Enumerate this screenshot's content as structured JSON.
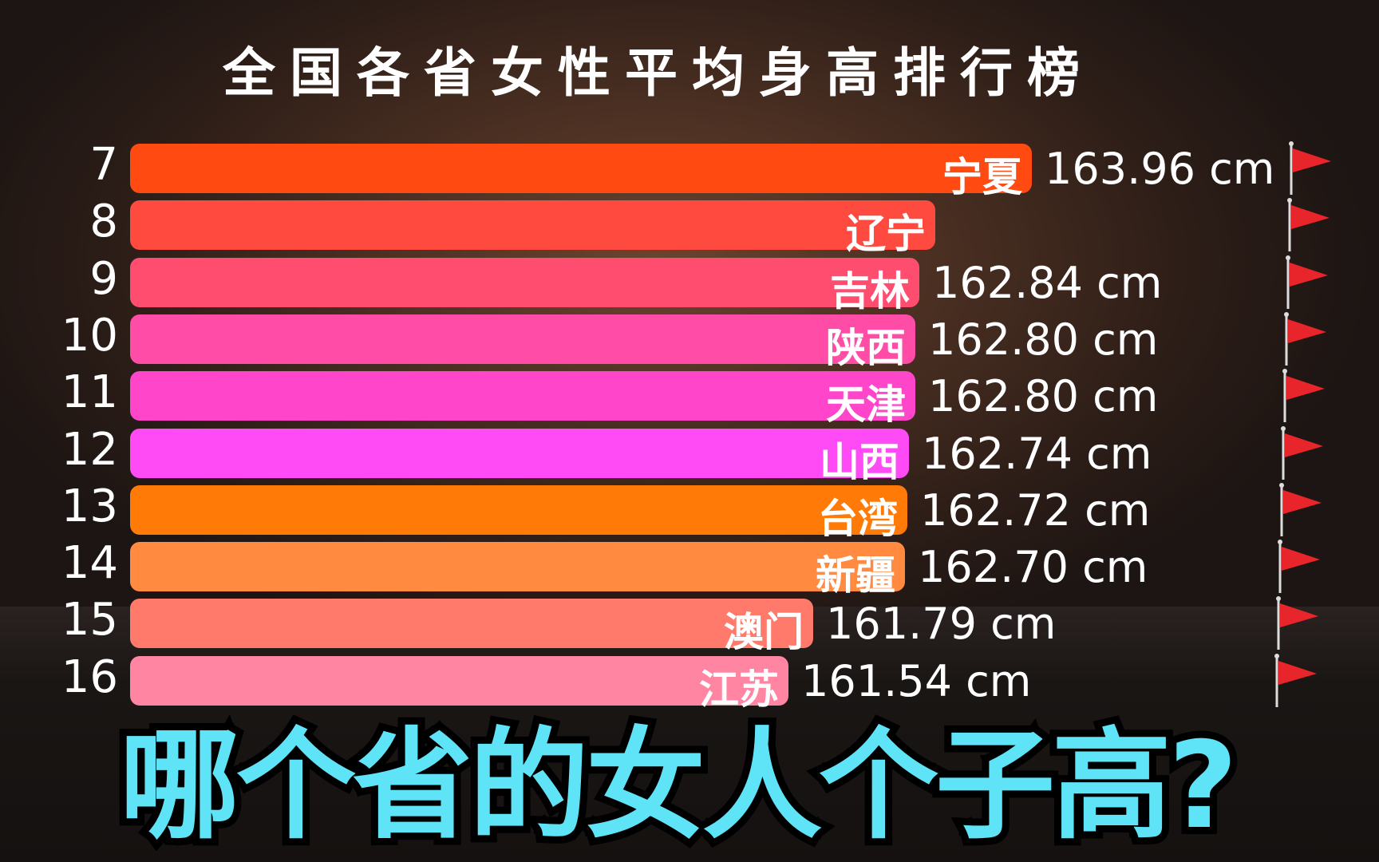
{
  "title": "全国各省女性平均身高排行榜",
  "overlay_text": "哪个省的女人个子高?",
  "chart_data": {
    "type": "bar",
    "orientation": "horizontal",
    "title": "全国各省女性平均身高排行榜",
    "unit": "cm",
    "rows": [
      {
        "rank": "7",
        "province": "宁夏",
        "value": 163.96,
        "label": "163.96 cm",
        "color": "#ff4a12"
      },
      {
        "rank": "8",
        "province": "辽宁",
        "value": 163.0,
        "label": "",
        "color": "#ff4a40"
      },
      {
        "rank": "9",
        "province": "吉林",
        "value": 162.84,
        "label": "162.84 cm",
        "color": "#ff4d70"
      },
      {
        "rank": "10",
        "province": "陕西",
        "value": 162.8,
        "label": "162.80 cm",
        "color": "#ff4ca6"
      },
      {
        "rank": "11",
        "province": "天津",
        "value": 162.8,
        "label": "162.80 cm",
        "color": "#ff45c9"
      },
      {
        "rank": "12",
        "province": "山西",
        "value": 162.74,
        "label": "162.74 cm",
        "color": "#ff4bf6"
      },
      {
        "rank": "13",
        "province": "台湾",
        "value": 162.72,
        "label": "162.72 cm",
        "color": "#ff7a06"
      },
      {
        "rank": "14",
        "province": "新疆",
        "value": 162.7,
        "label": "162.70 cm",
        "color": "#ff8a40"
      },
      {
        "rank": "15",
        "province": "澳门",
        "value": 161.79,
        "label": "161.79 cm",
        "color": "#ff7a6a"
      },
      {
        "rank": "16",
        "province": "江苏",
        "value": 161.54,
        "label": "161.54 cm",
        "color": "#ff85a2"
      }
    ]
  }
}
